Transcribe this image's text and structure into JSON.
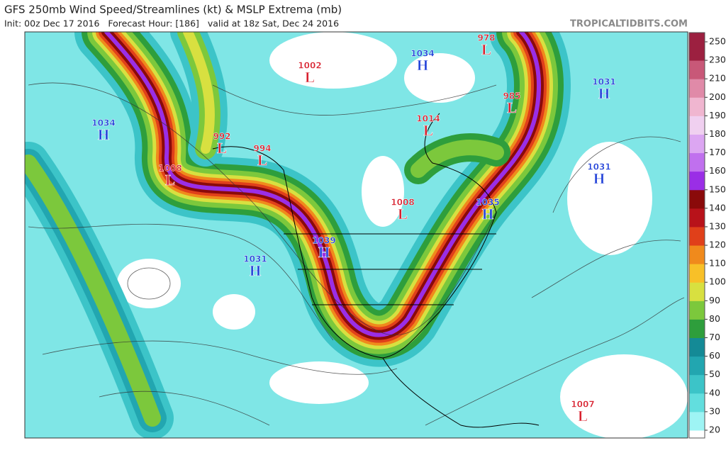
{
  "header": {
    "title": "GFS 250mb Wind Speed/Streamlines (kt) & MSLP Extrema (mb)",
    "subtitle": "Init: 00z Dec 17 2016   Forecast Hour: [186]   valid at 18z Sat, Dec 24 2016",
    "site": "TROPICALTIDBITS.COM"
  },
  "map": {
    "symbol_colors": {
      "H": "#1f3fd8",
      "L": "#d8202e"
    },
    "centers": [
      {
        "symbol": "L",
        "value": 978
      },
      {
        "symbol": "H",
        "value": 1034
      },
      {
        "symbol": "L",
        "value": 1002
      },
      {
        "symbol": "H",
        "value": 1031
      },
      {
        "symbol": "L",
        "value": 985
      },
      {
        "symbol": "H",
        "value": 1034
      },
      {
        "symbol": "L",
        "value": 1014
      },
      {
        "symbol": "L",
        "value": 992
      },
      {
        "symbol": "L",
        "value": 994
      },
      {
        "symbol": "L",
        "value": 1008
      },
      {
        "symbol": "H",
        "value": 1031
      },
      {
        "symbol": "L",
        "value": 1008
      },
      {
        "symbol": "H",
        "value": 1035
      },
      {
        "symbol": "H",
        "value": 1039
      },
      {
        "symbol": "H",
        "value": 1031
      },
      {
        "symbol": "L",
        "value": 1007
      }
    ]
  },
  "colorbar": {
    "ticks": [
      20,
      30,
      40,
      50,
      60,
      70,
      80,
      90,
      100,
      110,
      120,
      130,
      140,
      150,
      160,
      170,
      180,
      190,
      200,
      210,
      230,
      250
    ],
    "colors": [
      "#9ef4f4",
      "#62dede",
      "#3cc4c8",
      "#22a6b0",
      "#148a96",
      "#2e9e3c",
      "#7cc83c",
      "#d8e040",
      "#f8c028",
      "#f08a1c",
      "#e0401a",
      "#b8121a",
      "#8a0a0a",
      "#9a2ee6",
      "#c070ee",
      "#dca6f2",
      "#f0d0f0",
      "#f0b6d0",
      "#e08aa8",
      "#c85878",
      "#9c2040"
    ]
  }
}
